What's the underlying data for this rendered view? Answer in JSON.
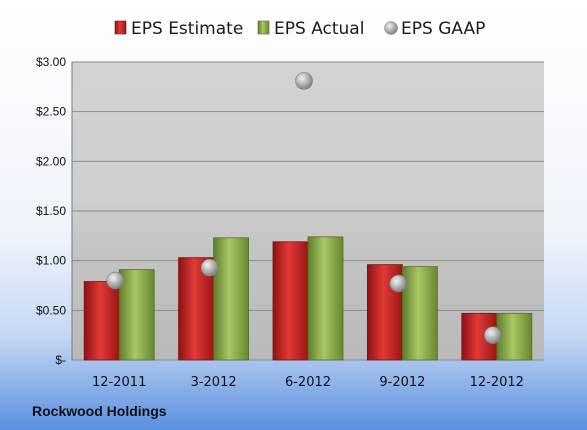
{
  "chart_data": {
    "type": "bar",
    "categories": [
      "12-2011",
      "3-2012",
      "6-2012",
      "9-2012",
      "12-2012"
    ],
    "series": [
      {
        "name": "EPS Estimate",
        "type": "bar",
        "values": [
          0.79,
          1.03,
          1.19,
          0.96,
          0.47
        ],
        "color": "#c8211f"
      },
      {
        "name": "EPS Actual",
        "type": "bar",
        "values": [
          0.91,
          1.23,
          1.24,
          0.94,
          0.47
        ],
        "color": "#8db04a"
      },
      {
        "name": "EPS GAAP",
        "type": "scatter",
        "values": [
          0.8,
          0.93,
          2.81,
          0.77,
          0.25
        ],
        "color": "#a9a9a9"
      }
    ],
    "ylim": [
      0,
      3
    ],
    "yticks": [
      0,
      0.5,
      1.0,
      1.5,
      2.0,
      2.5,
      3.0
    ],
    "ytick_labels": [
      "$-",
      "$0.50",
      "$1.00",
      "$1.50",
      "$2.00",
      "$2.50",
      "$3.00"
    ],
    "grid": true,
    "legend_position": "top",
    "footer": "Rockwood Holdings"
  }
}
